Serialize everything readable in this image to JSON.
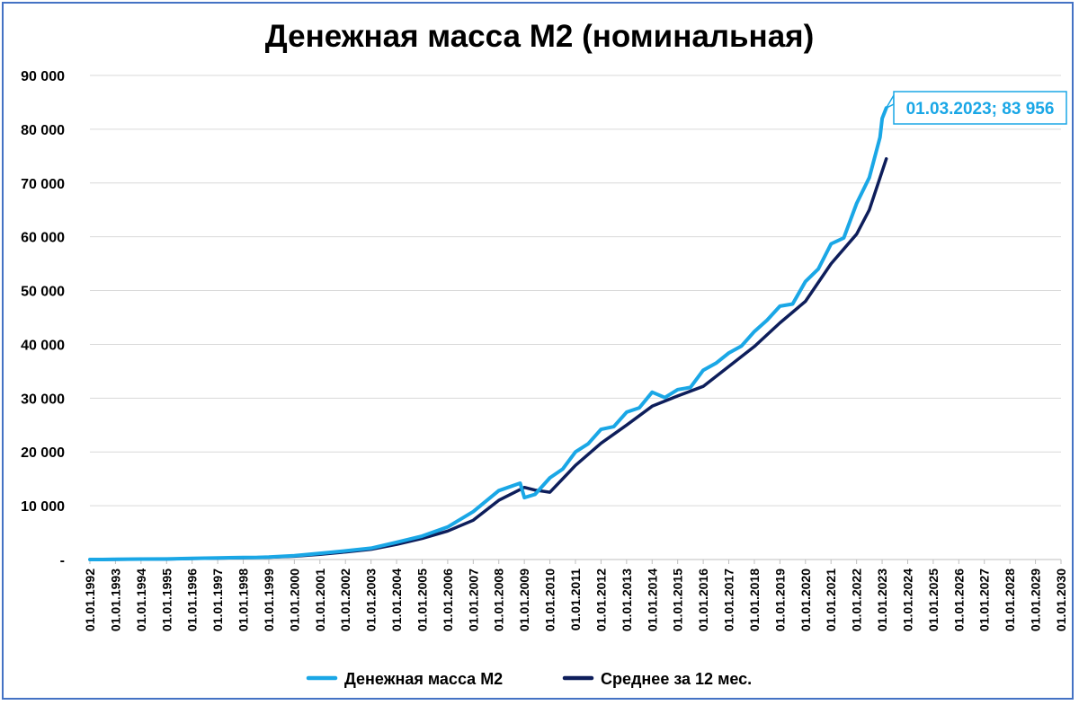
{
  "chart_data": {
    "type": "line",
    "title": "Денежная масса М2 (номинальная)",
    "xlabel": "",
    "ylabel": "",
    "ylim": [
      0,
      90000
    ],
    "y_ticks": [
      {
        "value": 0,
        "label": "-"
      },
      {
        "value": 10000,
        "label": "10 000"
      },
      {
        "value": 20000,
        "label": "20 000"
      },
      {
        "value": 30000,
        "label": "30 000"
      },
      {
        "value": 40000,
        "label": "40 000"
      },
      {
        "value": 50000,
        "label": "50 000"
      },
      {
        "value": 60000,
        "label": "60 000"
      },
      {
        "value": 70000,
        "label": "70 000"
      },
      {
        "value": 80000,
        "label": "80 000"
      },
      {
        "value": 90000,
        "label": "90 000"
      }
    ],
    "x_tick_labels": [
      "01.01.1992",
      "01.01.1993",
      "01.01.1994",
      "01.01.1995",
      "01.01.1996",
      "01.01.1997",
      "01.01.1998",
      "01.01.1999",
      "01.01.2000",
      "01.01.2001",
      "01.01.2002",
      "01.01.2003",
      "01.01.2004",
      "01.01.2005",
      "01.01.2006",
      "01.01.2007",
      "01.01.2008",
      "01.01.2009",
      "01.01.2010",
      "01.01.2011",
      "01.01.2012",
      "01.01.2013",
      "01.01.2014",
      "01.01.2015",
      "01.01.2016",
      "01.01.2017",
      "01.01.2018",
      "01.01.2019",
      "01.01.2020",
      "01.01.2021",
      "01.01.2022",
      "01.01.2023",
      "01.01.2024",
      "01.01.2025",
      "01.01.2026",
      "01.01.2027",
      "01.01.2028",
      "01.01.2029",
      "01.01.2030"
    ],
    "grid": true,
    "legend_position": "bottom",
    "series": [
      {
        "name": "Денежная масса М2",
        "color": "#1aa7e6",
        "points": [
          [
            "1992-01-01",
            0
          ],
          [
            "1992-07-01",
            0
          ],
          [
            "1993-01-01",
            30
          ],
          [
            "1994-01-01",
            80
          ],
          [
            "1995-01-01",
            100
          ],
          [
            "1996-01-01",
            220
          ],
          [
            "1997-01-01",
            290
          ],
          [
            "1998-01-01",
            380
          ],
          [
            "1998-07-01",
            380
          ],
          [
            "1999-01-01",
            450
          ],
          [
            "2000-01-01",
            700
          ],
          [
            "2001-01-01",
            1150
          ],
          [
            "2002-01-01",
            1600
          ],
          [
            "2003-01-01",
            2100
          ],
          [
            "2004-01-01",
            3200
          ],
          [
            "2005-01-01",
            4350
          ],
          [
            "2006-01-01",
            6050
          ],
          [
            "2007-01-01",
            8900
          ],
          [
            "2008-01-01",
            12800
          ],
          [
            "2008-11-01",
            14200
          ],
          [
            "2009-01-01",
            11500
          ],
          [
            "2009-06-01",
            12100
          ],
          [
            "2010-01-01",
            15200
          ],
          [
            "2010-07-01",
            16800
          ],
          [
            "2011-01-01",
            20000
          ],
          [
            "2011-07-01",
            21500
          ],
          [
            "2012-01-01",
            24200
          ],
          [
            "2012-07-01",
            24700
          ],
          [
            "2013-01-01",
            27400
          ],
          [
            "2013-07-01",
            28200
          ],
          [
            "2014-01-01",
            31100
          ],
          [
            "2014-07-01",
            30100
          ],
          [
            "2015-01-01",
            31600
          ],
          [
            "2015-07-01",
            32000
          ],
          [
            "2016-01-01",
            35200
          ],
          [
            "2016-07-01",
            36500
          ],
          [
            "2017-01-01",
            38400
          ],
          [
            "2017-07-01",
            39700
          ],
          [
            "2018-01-01",
            42400
          ],
          [
            "2018-07-01",
            44500
          ],
          [
            "2019-01-01",
            47100
          ],
          [
            "2019-07-01",
            47500
          ],
          [
            "2020-01-01",
            51700
          ],
          [
            "2020-07-01",
            54000
          ],
          [
            "2021-01-01",
            58700
          ],
          [
            "2021-07-01",
            59800
          ],
          [
            "2022-01-01",
            66200
          ],
          [
            "2022-07-01",
            71000
          ],
          [
            "2022-12-01",
            78500
          ],
          [
            "2023-01-01",
            82000
          ],
          [
            "2023-03-01",
            83956
          ]
        ]
      },
      {
        "name": "Среднее за 12 мес.",
        "color": "#0e1e5b",
        "points": [
          [
            "1992-06-01",
            0
          ],
          [
            "1993-01-01",
            20
          ],
          [
            "1994-01-01",
            60
          ],
          [
            "1995-01-01",
            90
          ],
          [
            "1996-01-01",
            180
          ],
          [
            "1997-01-01",
            250
          ],
          [
            "1998-01-01",
            330
          ],
          [
            "1999-01-01",
            420
          ],
          [
            "2000-01-01",
            600
          ],
          [
            "2001-01-01",
            950
          ],
          [
            "2002-01-01",
            1400
          ],
          [
            "2003-01-01",
            1900
          ],
          [
            "2004-01-01",
            2800
          ],
          [
            "2005-01-01",
            3900
          ],
          [
            "2006-01-01",
            5300
          ],
          [
            "2007-01-01",
            7300
          ],
          [
            "2008-01-01",
            11000
          ],
          [
            "2009-01-01",
            13400
          ],
          [
            "2009-06-01",
            12900
          ],
          [
            "2010-01-01",
            12500
          ],
          [
            "2011-01-01",
            17500
          ],
          [
            "2012-01-01",
            21600
          ],
          [
            "2013-01-01",
            25000
          ],
          [
            "2014-01-01",
            28500
          ],
          [
            "2015-01-01",
            30400
          ],
          [
            "2016-01-01",
            32200
          ],
          [
            "2017-01-01",
            35900
          ],
          [
            "2018-01-01",
            39600
          ],
          [
            "2019-01-01",
            44000
          ],
          [
            "2020-01-01",
            48000
          ],
          [
            "2021-01-01",
            55000
          ],
          [
            "2022-01-01",
            60500
          ],
          [
            "2022-07-01",
            65000
          ],
          [
            "2023-03-01",
            74500
          ]
        ]
      }
    ],
    "annotation": {
      "label": "01.03.2023;  83 956",
      "x": "2023-03-01",
      "y": 83956,
      "color": "#1aa7e6"
    }
  }
}
